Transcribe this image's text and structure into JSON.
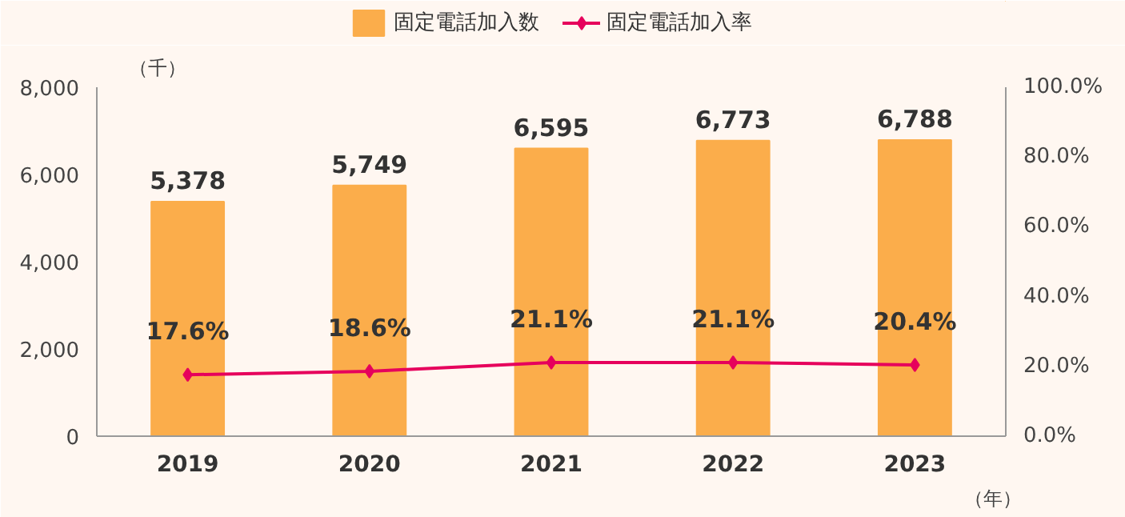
{
  "chart_data": {
    "type": "bar",
    "categories": [
      "2019",
      "2020",
      "2021",
      "2022",
      "2023"
    ],
    "ylabel": "（千）",
    "xlabel": "（年）",
    "series": [
      {
        "name": "固定電話加入数",
        "type": "bar",
        "color": "#fbad4b",
        "values": [
          5378,
          5749,
          6595,
          6773,
          6788
        ],
        "value_labels": [
          "5,378",
          "5,749",
          "6,595",
          "6,773",
          "6,788"
        ]
      },
      {
        "name": "固定電話加入率",
        "type": "line",
        "axis": "y2",
        "color": "#e6005c",
        "values": [
          17.6,
          18.6,
          21.1,
          21.1,
          20.4
        ],
        "value_labels": [
          "17.6%",
          "18.6%",
          "21.1%",
          "21.1%",
          "20.4%"
        ]
      }
    ],
    "ylim": [
      0,
      8000
    ],
    "yticks": [
      0,
      {
        "value": 2000,
        "label": "2,000"
      },
      {
        "value": 4000,
        "label": "4,000"
      },
      {
        "value": 6000,
        "label": "6,000"
      },
      {
        "value": 8000,
        "label": "8,000"
      }
    ],
    "y2lim": [
      0,
      100
    ],
    "y2ticks": [
      {
        "value": 0,
        "label": "0.0%"
      },
      {
        "value": 20,
        "label": "20.0%"
      },
      {
        "value": 40,
        "label": "40.0%"
      },
      {
        "value": 60,
        "label": "60.0%"
      },
      {
        "value": 80,
        "label": "80.0%"
      },
      {
        "value": 100,
        "label": "100.0%"
      }
    ],
    "legend": "top",
    "marker": "diamond",
    "grid": false
  }
}
